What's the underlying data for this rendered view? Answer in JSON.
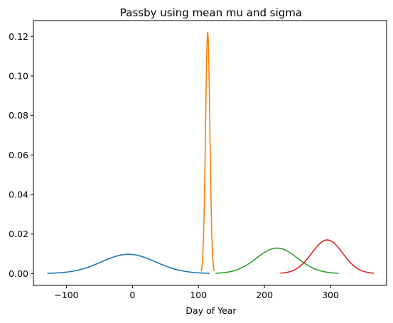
{
  "chart_data": {
    "type": "line",
    "title": "Passby using mean mu and sigma",
    "xlabel": "Day of Year",
    "ylabel": "",
    "xlim": [
      -150,
      385
    ],
    "ylim": [
      -0.006,
      0.128
    ],
    "xticks": [
      -100,
      0,
      100,
      200,
      300
    ],
    "xtick_labels": [
      "−100",
      "0",
      "100",
      "200",
      "300"
    ],
    "yticks": [
      0.0,
      0.02,
      0.04,
      0.06,
      0.08,
      0.1,
      0.12
    ],
    "ytick_labels": [
      "0.00",
      "0.02",
      "0.04",
      "0.06",
      "0.08",
      "0.10",
      "0.12"
    ],
    "grid": false,
    "legend": "none",
    "series": [
      {
        "color": "#1f77b4",
        "mu": -6,
        "sigma": 41,
        "x_range": [
          -129,
          117
        ]
      },
      {
        "color": "#ff7f0e",
        "mu": 114,
        "sigma": 3.27,
        "x_range": [
          104,
          124
        ]
      },
      {
        "color": "#2ca02c",
        "mu": 219,
        "sigma": 31,
        "x_range": [
          126,
          312
        ]
      },
      {
        "color": "#d62728",
        "mu": 295,
        "sigma": 23.5,
        "x_range": [
          224,
          366
        ]
      }
    ]
  }
}
